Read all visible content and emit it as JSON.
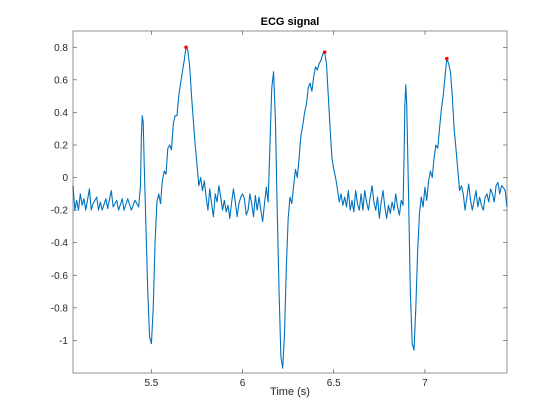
{
  "chart_data": {
    "type": "line",
    "title": "ECG signal",
    "xlabel": "Time (s)",
    "ylabel": "",
    "xlim": [
      5.07,
      7.45
    ],
    "ylim": [
      -1.2,
      0.9
    ],
    "xticks": [
      5.5,
      6,
      6.5,
      7
    ],
    "xtick_labels": [
      "5.5",
      "6",
      "6.5",
      "7"
    ],
    "yticks": [
      -1,
      -0.8,
      -0.6,
      -0.4,
      -0.2,
      0,
      0.2,
      0.4,
      0.6,
      0.8
    ],
    "ytick_labels": [
      "-1",
      "-0.8",
      "-0.6",
      "-0.4",
      "-0.2",
      "0",
      "0.2",
      "0.4",
      "0.6",
      "0.8"
    ],
    "grid": false,
    "series": [
      {
        "color": "#0072BD",
        "points": [
          [
            5.07,
            -0.05
          ],
          [
            5.08,
            -0.2
          ],
          [
            5.09,
            -0.14
          ],
          [
            5.1,
            -0.2
          ],
          [
            5.11,
            -0.1
          ],
          [
            5.12,
            -0.17
          ],
          [
            5.13,
            -0.13
          ],
          [
            5.14,
            -0.2
          ],
          [
            5.16,
            -0.07
          ],
          [
            5.17,
            -0.2
          ],
          [
            5.18,
            -0.16
          ],
          [
            5.2,
            -0.12
          ],
          [
            5.21,
            -0.2
          ],
          [
            5.22,
            -0.15
          ],
          [
            5.23,
            -0.2
          ],
          [
            5.25,
            -0.13
          ],
          [
            5.26,
            -0.19
          ],
          [
            5.28,
            -0.08
          ],
          [
            5.29,
            -0.18
          ],
          [
            5.31,
            -0.14
          ],
          [
            5.32,
            -0.2
          ],
          [
            5.34,
            -0.13
          ],
          [
            5.35,
            -0.2
          ],
          [
            5.37,
            -0.13
          ],
          [
            5.39,
            -0.2
          ],
          [
            5.41,
            -0.14
          ],
          [
            5.43,
            -0.18
          ],
          [
            5.44,
            -0.05
          ],
          [
            5.445,
            0.25
          ],
          [
            5.45,
            0.38
          ],
          [
            5.455,
            0.34
          ],
          [
            5.46,
            0.1
          ],
          [
            5.47,
            -0.3
          ],
          [
            5.48,
            -0.7
          ],
          [
            5.49,
            -0.98
          ],
          [
            5.5,
            -1.02
          ],
          [
            5.51,
            -0.8
          ],
          [
            5.52,
            -0.4
          ],
          [
            5.53,
            -0.15
          ],
          [
            5.54,
            -0.1
          ],
          [
            5.55,
            -0.16
          ],
          [
            5.56,
            -0.02
          ],
          [
            5.57,
            0.04
          ],
          [
            5.58,
            0.02
          ],
          [
            5.59,
            0.18
          ],
          [
            5.6,
            0.2
          ],
          [
            5.61,
            0.17
          ],
          [
            5.62,
            0.33
          ],
          [
            5.63,
            0.38
          ],
          [
            5.64,
            0.38
          ],
          [
            5.65,
            0.5
          ],
          [
            5.66,
            0.58
          ],
          [
            5.67,
            0.65
          ],
          [
            5.68,
            0.72
          ],
          [
            5.69,
            0.8
          ],
          [
            5.7,
            0.78
          ],
          [
            5.71,
            0.68
          ],
          [
            5.72,
            0.5
          ],
          [
            5.73,
            0.35
          ],
          [
            5.74,
            0.2
          ],
          [
            5.75,
            0.08
          ],
          [
            5.76,
            -0.05
          ],
          [
            5.77,
            0.0
          ],
          [
            5.78,
            -0.08
          ],
          [
            5.79,
            -0.02
          ],
          [
            5.8,
            -0.12
          ],
          [
            5.81,
            -0.2
          ],
          [
            5.82,
            -0.07
          ],
          [
            5.83,
            -0.16
          ],
          [
            5.84,
            -0.24
          ],
          [
            5.85,
            -0.1
          ],
          [
            5.86,
            -0.15
          ],
          [
            5.87,
            -0.05
          ],
          [
            5.88,
            -0.12
          ],
          [
            5.89,
            -0.2
          ],
          [
            5.9,
            -0.14
          ],
          [
            5.91,
            -0.21
          ],
          [
            5.92,
            -0.17
          ],
          [
            5.93,
            -0.25
          ],
          [
            5.94,
            -0.15
          ],
          [
            5.95,
            -0.07
          ],
          [
            5.96,
            -0.15
          ],
          [
            5.97,
            -0.24
          ],
          [
            5.98,
            -0.16
          ],
          [
            5.99,
            -0.12
          ],
          [
            6.0,
            -0.1
          ],
          [
            6.01,
            -0.13
          ],
          [
            6.02,
            -0.23
          ],
          [
            6.03,
            -0.2
          ],
          [
            6.04,
            -0.1
          ],
          [
            6.05,
            -0.16
          ],
          [
            6.06,
            -0.24
          ],
          [
            6.07,
            -0.11
          ],
          [
            6.08,
            -0.2
          ],
          [
            6.09,
            -0.12
          ],
          [
            6.1,
            -0.2
          ],
          [
            6.11,
            -0.27
          ],
          [
            6.12,
            -0.16
          ],
          [
            6.13,
            -0.06
          ],
          [
            6.14,
            -0.15
          ],
          [
            6.15,
            0.2
          ],
          [
            6.16,
            0.55
          ],
          [
            6.17,
            0.65
          ],
          [
            6.18,
            0.35
          ],
          [
            6.19,
            -0.2
          ],
          [
            6.2,
            -0.7
          ],
          [
            6.21,
            -1.1
          ],
          [
            6.22,
            -1.17
          ],
          [
            6.23,
            -0.95
          ],
          [
            6.24,
            -0.55
          ],
          [
            6.25,
            -0.25
          ],
          [
            6.26,
            -0.12
          ],
          [
            6.27,
            -0.16
          ],
          [
            6.28,
            -0.05
          ],
          [
            6.29,
            0.05
          ],
          [
            6.3,
            0.0
          ],
          [
            6.31,
            0.12
          ],
          [
            6.32,
            0.26
          ],
          [
            6.33,
            0.32
          ],
          [
            6.34,
            0.4
          ],
          [
            6.35,
            0.45
          ],
          [
            6.36,
            0.55
          ],
          [
            6.37,
            0.58
          ],
          [
            6.38,
            0.53
          ],
          [
            6.39,
            0.62
          ],
          [
            6.4,
            0.68
          ],
          [
            6.41,
            0.66
          ],
          [
            6.42,
            0.7
          ],
          [
            6.43,
            0.72
          ],
          [
            6.44,
            0.76
          ],
          [
            6.45,
            0.77
          ],
          [
            6.46,
            0.7
          ],
          [
            6.47,
            0.5
          ],
          [
            6.48,
            0.3
          ],
          [
            6.49,
            0.12
          ],
          [
            6.5,
            0.05
          ],
          [
            6.51,
            0.0
          ],
          [
            6.52,
            -0.07
          ],
          [
            6.53,
            -0.15
          ],
          [
            6.54,
            -0.1
          ],
          [
            6.55,
            -0.17
          ],
          [
            6.56,
            -0.12
          ],
          [
            6.57,
            -0.18
          ],
          [
            6.58,
            -0.08
          ],
          [
            6.59,
            -0.2
          ],
          [
            6.6,
            -0.14
          ],
          [
            6.61,
            -0.21
          ],
          [
            6.62,
            -0.08
          ],
          [
            6.63,
            -0.16
          ],
          [
            6.64,
            -0.2
          ],
          [
            6.65,
            -0.1
          ],
          [
            6.66,
            -0.2
          ],
          [
            6.67,
            -0.08
          ],
          [
            6.68,
            -0.15
          ],
          [
            6.69,
            -0.2
          ],
          [
            6.7,
            -0.12
          ],
          [
            6.71,
            -0.05
          ],
          [
            6.72,
            -0.15
          ],
          [
            6.73,
            -0.2
          ],
          [
            6.74,
            -0.12
          ],
          [
            6.75,
            -0.25
          ],
          [
            6.76,
            -0.15
          ],
          [
            6.77,
            -0.08
          ],
          [
            6.78,
            -0.18
          ],
          [
            6.79,
            -0.25
          ],
          [
            6.8,
            -0.17
          ],
          [
            6.81,
            -0.22
          ],
          [
            6.82,
            -0.15
          ],
          [
            6.83,
            -0.2
          ],
          [
            6.84,
            -0.1
          ],
          [
            6.85,
            -0.18
          ],
          [
            6.86,
            -0.23
          ],
          [
            6.87,
            -0.14
          ],
          [
            6.88,
            -0.17
          ],
          [
            6.885,
            0.1
          ],
          [
            6.89,
            0.45
          ],
          [
            6.895,
            0.57
          ],
          [
            6.9,
            0.45
          ],
          [
            6.91,
            -0.1
          ],
          [
            6.92,
            -0.7
          ],
          [
            6.93,
            -1.02
          ],
          [
            6.94,
            -1.06
          ],
          [
            6.95,
            -0.8
          ],
          [
            6.96,
            -0.45
          ],
          [
            6.97,
            -0.22
          ],
          [
            6.98,
            -0.12
          ],
          [
            6.99,
            -0.18
          ],
          [
            7.0,
            -0.06
          ],
          [
            7.01,
            -0.14
          ],
          [
            7.02,
            -0.02
          ],
          [
            7.03,
            0.04
          ],
          [
            7.04,
            0.0
          ],
          [
            7.05,
            0.12
          ],
          [
            7.06,
            0.2
          ],
          [
            7.07,
            0.18
          ],
          [
            7.08,
            0.3
          ],
          [
            7.09,
            0.42
          ],
          [
            7.1,
            0.5
          ],
          [
            7.11,
            0.62
          ],
          [
            7.12,
            0.73
          ],
          [
            7.13,
            0.7
          ],
          [
            7.14,
            0.65
          ],
          [
            7.15,
            0.5
          ],
          [
            7.16,
            0.3
          ],
          [
            7.17,
            0.18
          ],
          [
            7.18,
            0.05
          ],
          [
            7.19,
            -0.08
          ],
          [
            7.2,
            -0.05
          ],
          [
            7.21,
            -0.1
          ],
          [
            7.22,
            -0.2
          ],
          [
            7.23,
            -0.12
          ],
          [
            7.24,
            -0.04
          ],
          [
            7.25,
            -0.14
          ],
          [
            7.26,
            -0.2
          ],
          [
            7.27,
            -0.14
          ],
          [
            7.28,
            -0.08
          ],
          [
            7.29,
            -0.18
          ],
          [
            7.3,
            -0.12
          ],
          [
            7.31,
            -0.17
          ],
          [
            7.32,
            -0.2
          ],
          [
            7.33,
            -0.12
          ],
          [
            7.34,
            -0.1
          ],
          [
            7.35,
            -0.15
          ],
          [
            7.36,
            -0.07
          ],
          [
            7.37,
            -0.1
          ],
          [
            7.38,
            -0.15
          ],
          [
            7.39,
            -0.05
          ],
          [
            7.4,
            -0.03
          ],
          [
            7.41,
            -0.1
          ],
          [
            7.42,
            -0.05
          ],
          [
            7.43,
            -0.06
          ],
          [
            7.44,
            -0.08
          ],
          [
            7.45,
            -0.18
          ]
        ]
      }
    ],
    "peaks": {
      "color": "#FF0000",
      "points": [
        [
          5.69,
          0.8
        ],
        [
          6.45,
          0.77
        ],
        [
          7.12,
          0.73
        ]
      ]
    }
  }
}
